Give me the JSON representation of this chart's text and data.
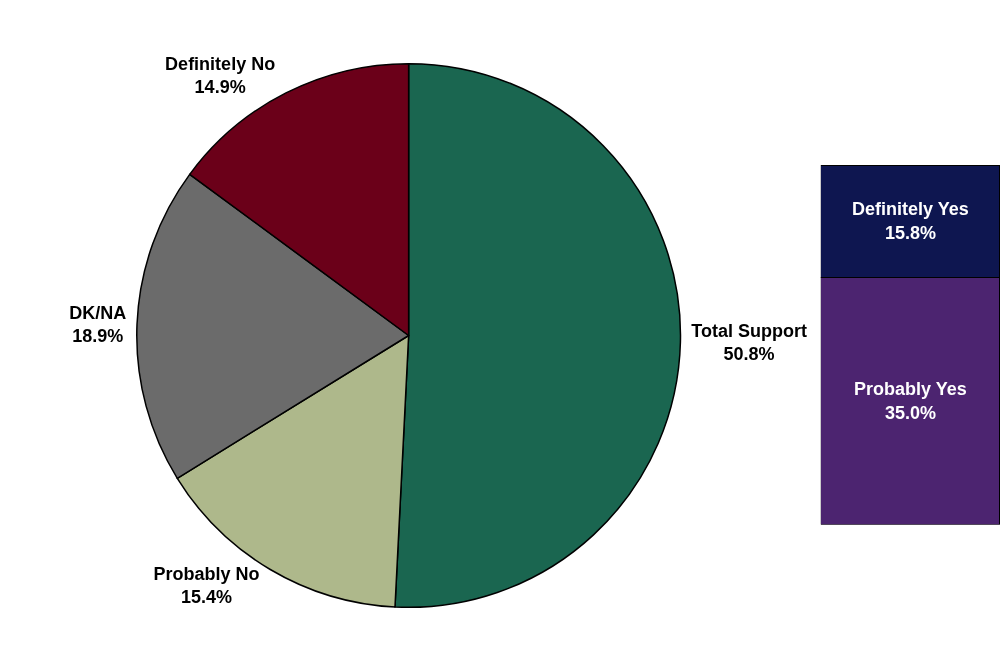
{
  "chart_data": [
    {
      "type": "pie",
      "categories": [
        "Total Support",
        "Probably No",
        "DK/NA",
        "Definitely No"
      ],
      "values": [
        50.8,
        15.4,
        18.9,
        14.9
      ],
      "value_labels": [
        "50.8%",
        "15.4%",
        "18.9%",
        "14.9%"
      ],
      "colors": [
        "#1a6650",
        "#aeb88b",
        "#6b6b6b",
        "#6b0019"
      ],
      "legend": false
    },
    {
      "type": "bar",
      "stacked": true,
      "categories": [
        null
      ],
      "tick_labels": false,
      "legend": false,
      "series": [
        {
          "name": "Probably Yes",
          "color": "#4c2470",
          "values": [
            35.0
          ],
          "value_labels": [
            "35.0%"
          ]
        },
        {
          "name": "Definitely Yes",
          "color": "#0e1650",
          "values": [
            15.8
          ],
          "value_labels": [
            "15.8%"
          ]
        }
      ]
    }
  ]
}
